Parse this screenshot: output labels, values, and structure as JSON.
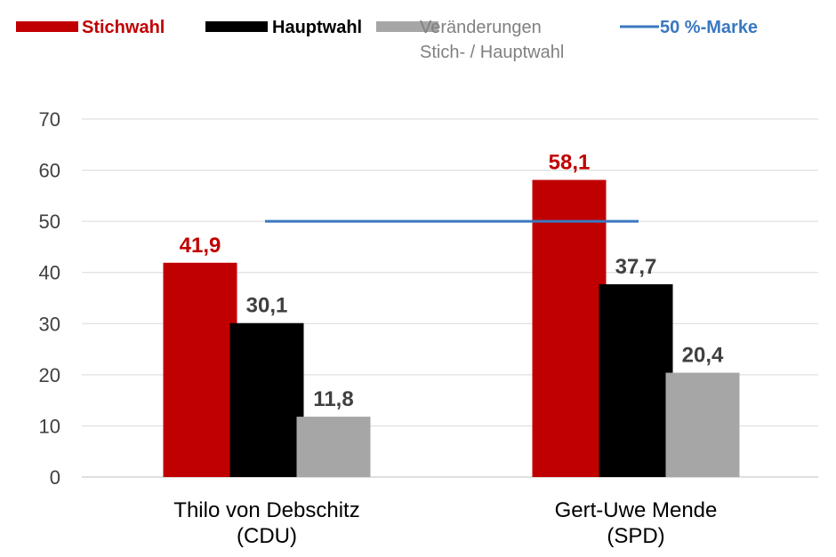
{
  "chart_data": {
    "type": "bar",
    "categories": [
      [
        "Thilo von Debschitz",
        "(CDU)"
      ],
      [
        "Gert-Uwe Mende",
        "(SPD)"
      ]
    ],
    "series": [
      {
        "name": "Stichwahl",
        "values": [
          41.9,
          58.1
        ],
        "labels": [
          "41,9",
          "58,1"
        ],
        "color": "#c00000",
        "label_color": "#c00000"
      },
      {
        "name": "Hauptwahl",
        "values": [
          30.1,
          37.7
        ],
        "labels": [
          "30,1",
          "37,7"
        ],
        "color": "#000000",
        "label_color": "#404040"
      },
      {
        "name": [
          "Veränderungen",
          "Stich- / Hauptwahl"
        ],
        "values": [
          11.8,
          20.4
        ],
        "labels": [
          "11,8",
          "20,4"
        ],
        "color": "#a6a6a6",
        "label_color": "#404040"
      }
    ],
    "reference_line": {
      "name": "50 %-Marke",
      "value": 50,
      "color": "#3a78c0"
    },
    "y_ticks": [
      "0",
      "10",
      "20",
      "30",
      "40",
      "50",
      "60",
      "70"
    ],
    "ylim": [
      0,
      70
    ],
    "grid": true,
    "legend_position": "top"
  }
}
